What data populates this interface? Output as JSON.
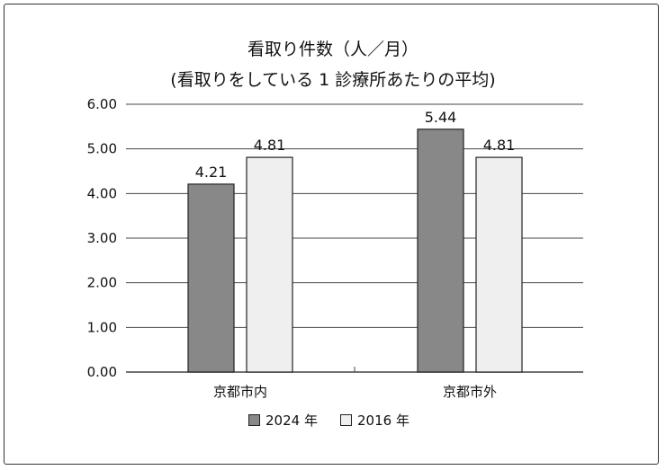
{
  "chart_data": {
    "type": "bar",
    "title": "看取り件数（人／月）",
    "subtitle": "(看取りをしている 1 診療所あたりの平均)",
    "categories": [
      "京都市内",
      "京都市外"
    ],
    "series": [
      {
        "name": "2024 年",
        "values": [
          4.21,
          5.44
        ],
        "color": "#888888"
      },
      {
        "name": "2016 年",
        "values": [
          4.81,
          4.81
        ],
        "color": "#efefef"
      }
    ],
    "value_labels": [
      [
        "4.21",
        "5.44"
      ],
      [
        "4.81",
        "4.81"
      ]
    ],
    "yticks": [
      "0.00",
      "1.00",
      "2.00",
      "3.00",
      "4.00",
      "5.00",
      "6.00"
    ],
    "ylim": [
      0,
      6
    ],
    "grid": true,
    "legend_position": "bottom"
  }
}
